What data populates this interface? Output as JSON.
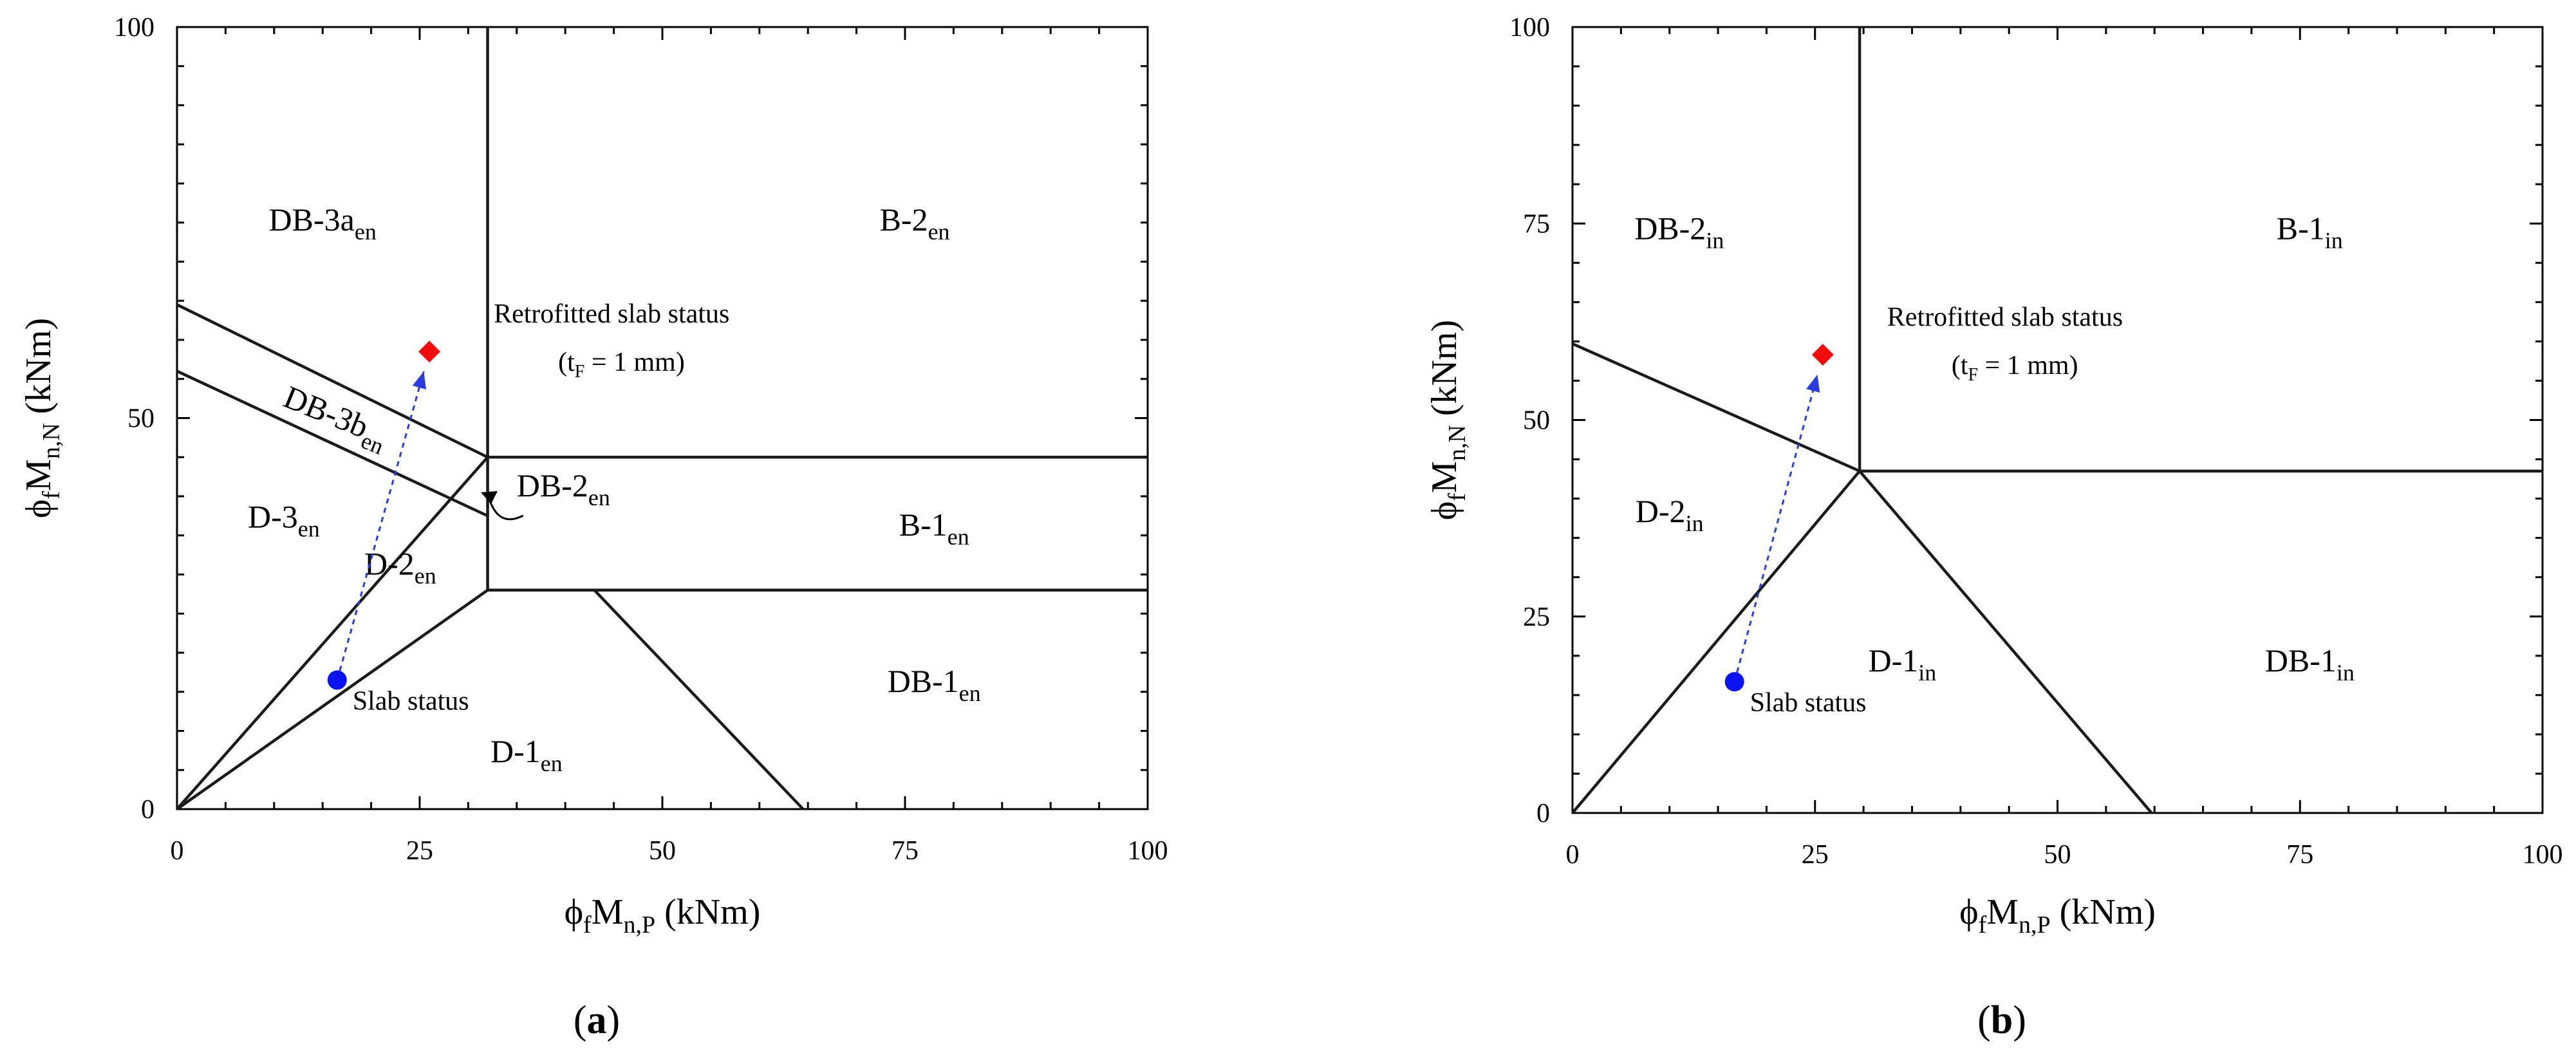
{
  "chart_data": [
    {
      "panel": "(a)",
      "caption_letter": "a",
      "type": "scatter",
      "xlabel": {
        "main": "ϕ",
        "sub1": "f",
        "mid": "M",
        "sub2": "n,P",
        "tail": " (kNm)"
      },
      "ylabel": {
        "main": "ϕ",
        "sub1": "f",
        "mid": "M",
        "sub2": "n,N",
        "tail": " (kNm)"
      },
      "xlim": [
        0,
        100
      ],
      "ylim": [
        0,
        100
      ],
      "xticks": [
        0,
        25,
        50,
        75,
        100
      ],
      "yticks": [
        0,
        50,
        100
      ],
      "minor_x": 5,
      "minor_y": 5,
      "grid": false,
      "regions": [
        {
          "base": "DB-3a",
          "sub": "en",
          "x": 15,
          "y": 74
        },
        {
          "base": "B-2",
          "sub": "en",
          "x": 76,
          "y": 74
        },
        {
          "base": "DB-3b",
          "sub": "en",
          "x": 16,
          "y": 49,
          "rotate": 22
        },
        {
          "base": "D-3",
          "sub": "en",
          "x": 11,
          "y": 36
        },
        {
          "base": "D-2",
          "sub": "en",
          "x": 23,
          "y": 30
        },
        {
          "base": "B-1",
          "sub": "en",
          "x": 78,
          "y": 35
        },
        {
          "base": "DB-1",
          "sub": "en",
          "x": 78,
          "y": 15
        },
        {
          "base": "D-1",
          "sub": "en",
          "x": 36,
          "y": 6
        }
      ],
      "callout": {
        "base": "DB-2",
        "sub": "en",
        "x": 35,
        "y": 40
      },
      "slab_status": {
        "label": "Slab status",
        "x": 16.5,
        "y": 16.5
      },
      "retrofitted_status": {
        "label": "Retrofitted slab status",
        "tf_label": "(t",
        "tf_sub": "F",
        "tf_tail": " = 1 mm)",
        "x": 26,
        "y": 58.5
      },
      "boundaries": [
        [
          [
            32,
            28
          ],
          [
            32,
            100
          ]
        ],
        [
          [
            0,
            0
          ],
          [
            32,
            45
          ]
        ],
        [
          [
            0,
            0
          ],
          [
            32,
            28
          ]
        ],
        [
          [
            0,
            64.5
          ],
          [
            32,
            45
          ]
        ],
        [
          [
            0,
            56
          ],
          [
            32,
            37.5
          ]
        ],
        [
          [
            32,
            45
          ],
          [
            100,
            45
          ]
        ],
        [
          [
            32,
            28
          ],
          [
            100,
            28
          ]
        ],
        [
          [
            43,
            28
          ],
          [
            64.5,
            0
          ]
        ]
      ]
    },
    {
      "panel": "(b)",
      "caption_letter": "b",
      "type": "scatter",
      "xlabel": {
        "main": "ϕ",
        "sub1": "f",
        "mid": "M",
        "sub2": "n,P",
        "tail": " (kNm)"
      },
      "ylabel": {
        "main": "ϕ",
        "sub1": "f",
        "mid": "M",
        "sub2": "n,N",
        "tail": " (kNm)"
      },
      "xlim": [
        0,
        100
      ],
      "ylim": [
        0,
        100
      ],
      "xticks": [
        0,
        25,
        50,
        75,
        100
      ],
      "yticks": [
        0,
        25,
        50,
        75,
        100
      ],
      "minor_x": 5,
      "minor_y": 5,
      "grid": false,
      "regions": [
        {
          "base": "DB-2",
          "sub": "in",
          "x": 11,
          "y": 73
        },
        {
          "base": "B-1",
          "sub": "in",
          "x": 76,
          "y": 73
        },
        {
          "base": "D-2",
          "sub": "in",
          "x": 10,
          "y": 37
        },
        {
          "base": "D-1",
          "sub": "in",
          "x": 34,
          "y": 18
        },
        {
          "base": "DB-1",
          "sub": "in",
          "x": 76,
          "y": 18
        }
      ],
      "slab_status": {
        "label": "Slab status",
        "x": 16.7,
        "y": 16.7
      },
      "retrofitted_status": {
        "label": "Retrofitted slab status",
        "tf_label": "(t",
        "tf_sub": "F",
        "tf_tail": " = 1 mm)",
        "x": 25.8,
        "y": 58.3
      },
      "boundaries": [
        [
          [
            29.6,
            43.5
          ],
          [
            29.6,
            100
          ]
        ],
        [
          [
            0,
            0
          ],
          [
            29.6,
            43.5
          ]
        ],
        [
          [
            0,
            59.7
          ],
          [
            29.6,
            43.5
          ]
        ],
        [
          [
            29.6,
            43.5
          ],
          [
            100,
            43.5
          ]
        ],
        [
          [
            29.6,
            43.5
          ],
          [
            59.7,
            0
          ]
        ]
      ]
    }
  ],
  "colors": {
    "slab": "#0b12f0",
    "retrofitted": "#f20c0c",
    "arrow": "#2a3be0"
  }
}
